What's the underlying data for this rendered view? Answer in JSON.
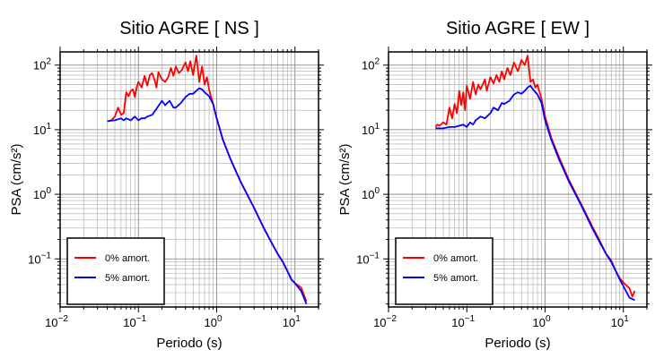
{
  "chart_data": [
    {
      "type": "line",
      "title": "Sitio AGRE [ NS ]",
      "xlabel": "Periodo (s)",
      "ylabel": "PSA (cm/s²)",
      "xscale": "log",
      "yscale": "log",
      "xlim": [
        0.01,
        20
      ],
      "ylim": [
        0.018,
        160
      ],
      "grid": true,
      "legend_position": "bottom-left",
      "x_ticks": [
        {
          "value": 0.01,
          "base": "10",
          "exp": "−2"
        },
        {
          "value": 0.1,
          "base": "10",
          "exp": "−1"
        },
        {
          "value": 1,
          "base": "10",
          "exp": "0"
        },
        {
          "value": 10,
          "base": "10",
          "exp": "1"
        }
      ],
      "y_ticks": [
        {
          "value": 0.1,
          "base": "10",
          "exp": "−1"
        },
        {
          "value": 1,
          "base": "10",
          "exp": "0"
        },
        {
          "value": 10,
          "base": "10",
          "exp": "1"
        },
        {
          "value": 100,
          "base": "10",
          "exp": "2"
        }
      ],
      "series": [
        {
          "name": "0% amort.",
          "color": "#ff0000",
          "x": [
            0.04,
            0.045,
            0.05,
            0.055,
            0.06,
            0.065,
            0.07,
            0.075,
            0.08,
            0.085,
            0.09,
            0.095,
            0.1,
            0.11,
            0.12,
            0.13,
            0.14,
            0.15,
            0.16,
            0.17,
            0.18,
            0.2,
            0.22,
            0.24,
            0.26,
            0.28,
            0.3,
            0.33,
            0.36,
            0.4,
            0.43,
            0.46,
            0.5,
            0.55,
            0.6,
            0.65,
            0.7,
            0.75,
            0.8,
            0.9,
            1.0,
            1.2,
            1.5,
            2.0,
            2.5,
            3.0,
            4.0,
            5.0,
            6.0,
            7.0,
            8.0,
            9.0,
            10.0,
            12.0,
            14.0
          ],
          "y": [
            13.5,
            14,
            16,
            22,
            17,
            18,
            38,
            33,
            40,
            42,
            32,
            45,
            55,
            45,
            68,
            48,
            70,
            75,
            60,
            45,
            78,
            60,
            55,
            65,
            90,
            68,
            95,
            75,
            85,
            110,
            80,
            115,
            70,
            140,
            55,
            95,
            50,
            65,
            42,
            25,
            15,
            7,
            3.5,
            1.6,
            0.95,
            0.62,
            0.3,
            0.18,
            0.12,
            0.09,
            0.065,
            0.048,
            0.042,
            0.036,
            0.022
          ]
        },
        {
          "name": "5% amort.",
          "color": "#0000ff",
          "x": [
            0.04,
            0.05,
            0.06,
            0.065,
            0.07,
            0.08,
            0.09,
            0.1,
            0.11,
            0.12,
            0.13,
            0.15,
            0.17,
            0.2,
            0.22,
            0.25,
            0.28,
            0.3,
            0.35,
            0.4,
            0.45,
            0.5,
            0.55,
            0.6,
            0.65,
            0.7,
            0.8,
            0.9,
            1.0,
            1.2,
            1.5,
            2.0,
            2.5,
            3.0,
            4.0,
            5.0,
            6.0,
            7.0,
            8.0,
            9.0,
            10.0,
            12.0,
            14.0
          ],
          "y": [
            13.5,
            14,
            15,
            14,
            15,
            14,
            16,
            14,
            15,
            15,
            16,
            17,
            21,
            28,
            24,
            28,
            22,
            22,
            26,
            32,
            36,
            36,
            40,
            44,
            42,
            38,
            33,
            25,
            15,
            7,
            3.5,
            1.6,
            0.95,
            0.62,
            0.3,
            0.18,
            0.12,
            0.09,
            0.065,
            0.048,
            0.042,
            0.032,
            0.02
          ]
        }
      ]
    },
    {
      "type": "line",
      "title": "Sitio AGRE [ EW ]",
      "xlabel": "Periodo (s)",
      "ylabel": "PSA (cm/s²)",
      "xscale": "log",
      "yscale": "log",
      "xlim": [
        0.01,
        20
      ],
      "ylim": [
        0.018,
        160
      ],
      "grid": true,
      "legend_position": "bottom-left",
      "x_ticks": [
        {
          "value": 0.01,
          "base": "10",
          "exp": "−2"
        },
        {
          "value": 0.1,
          "base": "10",
          "exp": "−1"
        },
        {
          "value": 1,
          "base": "10",
          "exp": "0"
        },
        {
          "value": 10,
          "base": "10",
          "exp": "1"
        }
      ],
      "y_ticks": [
        {
          "value": 0.1,
          "base": "10",
          "exp": "−1"
        },
        {
          "value": 1,
          "base": "10",
          "exp": "0"
        },
        {
          "value": 10,
          "base": "10",
          "exp": "1"
        },
        {
          "value": 100,
          "base": "10",
          "exp": "2"
        }
      ],
      "series": [
        {
          "name": "0% amort.",
          "color": "#ff0000",
          "x": [
            0.04,
            0.042,
            0.045,
            0.05,
            0.055,
            0.06,
            0.065,
            0.07,
            0.075,
            0.08,
            0.085,
            0.09,
            0.095,
            0.1,
            0.11,
            0.12,
            0.13,
            0.14,
            0.15,
            0.17,
            0.18,
            0.2,
            0.22,
            0.24,
            0.26,
            0.28,
            0.3,
            0.33,
            0.36,
            0.4,
            0.45,
            0.5,
            0.55,
            0.6,
            0.65,
            0.7,
            0.75,
            0.8,
            0.9,
            1.0,
            1.2,
            1.5,
            2.0,
            2.5,
            3.0,
            4.0,
            5.0,
            6.0,
            7.0,
            8.0,
            9.0,
            10.0,
            12.0,
            13.0,
            14.0
          ],
          "y": [
            11,
            12,
            11.5,
            13,
            12,
            22,
            15,
            25,
            18,
            40,
            24,
            38,
            20,
            48,
            30,
            55,
            35,
            50,
            42,
            60,
            40,
            65,
            52,
            70,
            55,
            80,
            60,
            90,
            70,
            110,
            80,
            120,
            100,
            140,
            55,
            60,
            45,
            50,
            30,
            16,
            7.5,
            3.8,
            1.7,
            1.0,
            0.65,
            0.32,
            0.19,
            0.12,
            0.095,
            0.065,
            0.05,
            0.043,
            0.035,
            0.026,
            0.032
          ]
        },
        {
          "name": "5% amort.",
          "color": "#0000ff",
          "x": [
            0.04,
            0.05,
            0.06,
            0.07,
            0.08,
            0.09,
            0.1,
            0.11,
            0.12,
            0.13,
            0.15,
            0.17,
            0.2,
            0.22,
            0.25,
            0.28,
            0.3,
            0.35,
            0.4,
            0.45,
            0.5,
            0.55,
            0.6,
            0.65,
            0.7,
            0.8,
            0.9,
            1.0,
            1.2,
            1.5,
            2.0,
            2.5,
            3.0,
            4.0,
            5.0,
            6.0,
            7.0,
            8.0,
            9.0,
            10.0,
            12.0,
            14.0
          ],
          "y": [
            10.5,
            10.5,
            11,
            11,
            11.5,
            12,
            11,
            13,
            12,
            14,
            16,
            15,
            18,
            22,
            20,
            26,
            25,
            28,
            35,
            38,
            36,
            40,
            45,
            48,
            42,
            35,
            26,
            14,
            7,
            3.5,
            1.6,
            0.95,
            0.62,
            0.3,
            0.18,
            0.12,
            0.09,
            0.065,
            0.048,
            0.038,
            0.025,
            0.023
          ]
        }
      ]
    }
  ]
}
